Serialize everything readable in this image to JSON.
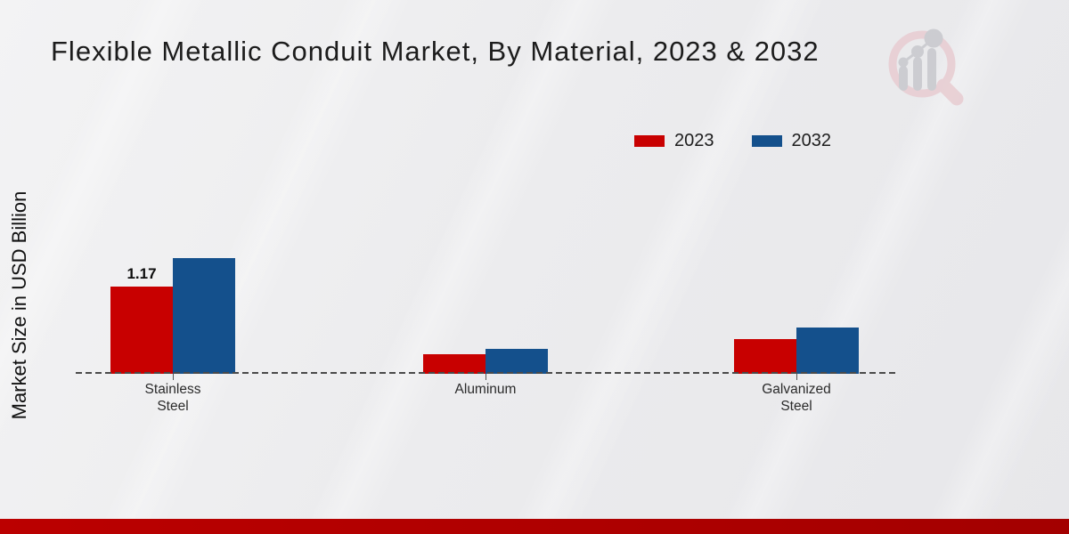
{
  "header": {
    "title": "Flexible Metallic Conduit Market, By Material, 2023 & 2032"
  },
  "chart_data": {
    "type": "bar",
    "title": "Flexible Metallic Conduit Market, By Material, 2023 & 2032",
    "xlabel": "",
    "ylabel": "Market Size in USD Billion",
    "categories": [
      "Stainless Steel",
      "Aluminum",
      "Galvanized Steel"
    ],
    "category_label_lines": [
      [
        "Stainless",
        "Steel"
      ],
      [
        "Aluminum"
      ],
      [
        "Galvanized",
        "Steel"
      ]
    ],
    "series": [
      {
        "name": "2023",
        "color": "#c80000",
        "values": [
          1.17,
          0.26,
          0.47
        ]
      },
      {
        "name": "2032",
        "color": "#14508c",
        "values": [
          1.55,
          0.33,
          0.62
        ]
      }
    ],
    "data_labels": [
      {
        "series_index": 0,
        "category_index": 0,
        "text": "1.17"
      }
    ],
    "legend_position": "top-right",
    "grid": false,
    "baseline_style": "dashed",
    "baseline_color": "#4a4a4a",
    "ylim": [
      0,
      1.8
    ]
  },
  "icons": {
    "logo": "market-research-future-magnifier-logo"
  },
  "colors": {
    "background": "#ececee",
    "bar_2023": "#c80000",
    "bar_2032": "#14508c",
    "footer_red": "#bb0000",
    "logo_pink": "#e8ccd1",
    "logo_gray": "#c7c8cd"
  }
}
